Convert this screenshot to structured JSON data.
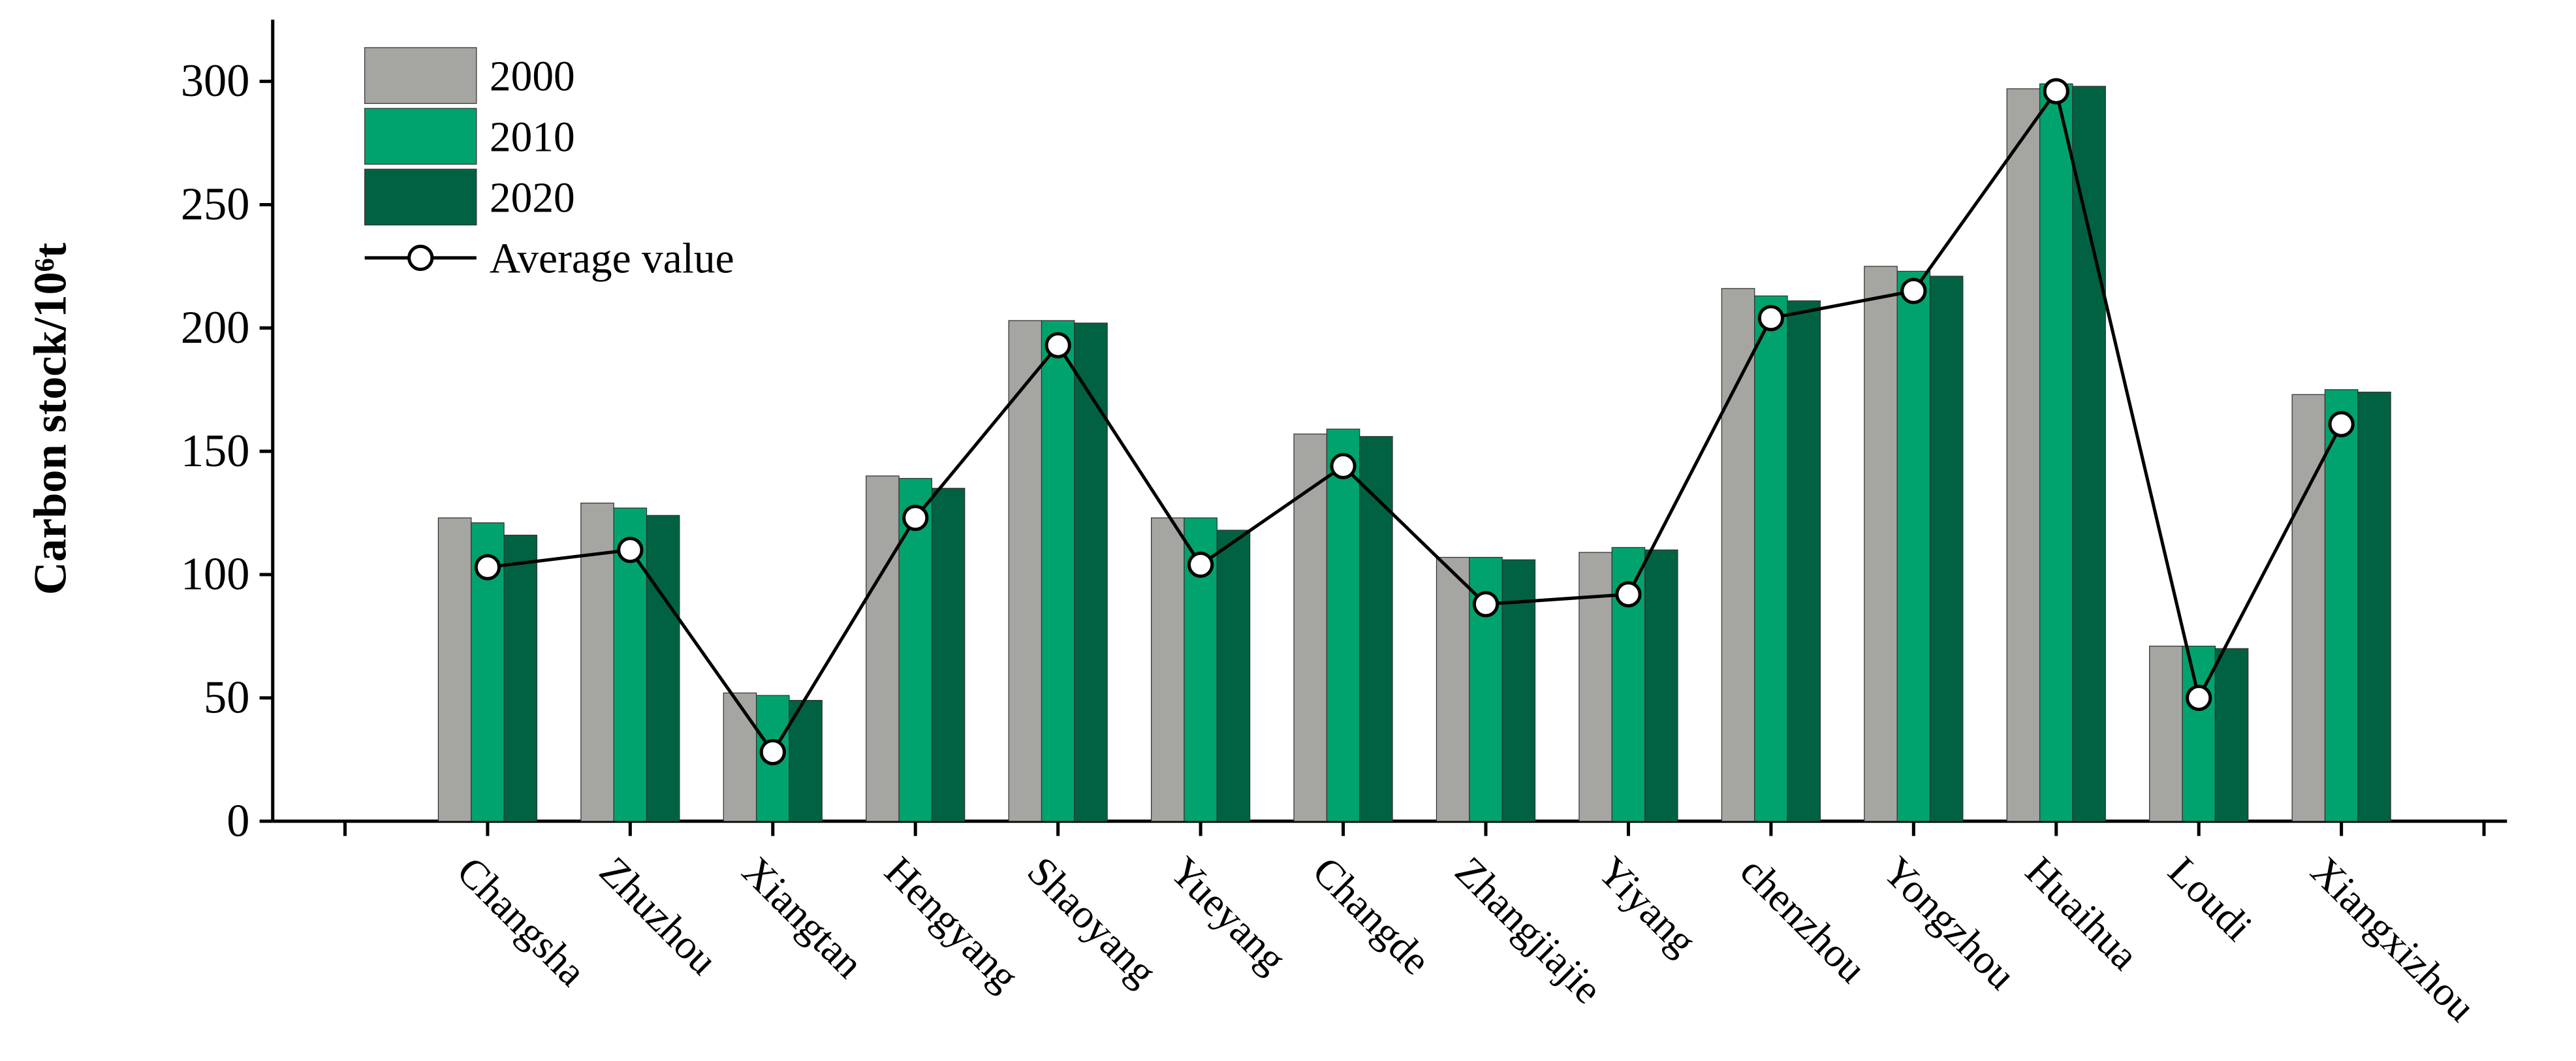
{
  "chart_data": {
    "type": "bar",
    "y_label": "Carbon stock/10⁶t",
    "categories": [
      "Changsha",
      "Zhuzhou",
      "Xiangtan",
      "Hengyang",
      "Shaoyang",
      "Yueyang",
      "Changde",
      "Zhangjiajie",
      "Yiyang",
      "chenzhou",
      "Yongzhou",
      "Huaihua",
      "Loudi",
      "Xiangxizhou"
    ],
    "series": [
      {
        "name": "2000",
        "color": "#a5a5a1",
        "values": [
          123,
          129,
          52,
          140,
          203,
          123,
          157,
          107,
          109,
          216,
          225,
          297,
          71,
          173
        ]
      },
      {
        "name": "2010",
        "color": "#00a36e",
        "values": [
          121,
          127,
          51,
          139,
          203,
          123,
          159,
          107,
          111,
          213,
          223,
          299,
          71,
          175
        ]
      },
      {
        "name": "2020",
        "color": "#006242",
        "values": [
          116,
          124,
          49,
          135,
          202,
          118,
          156,
          106,
          110,
          211,
          221,
          298,
          70,
          174
        ]
      },
      {
        "name": "Average value",
        "type": "line",
        "color": "#000000",
        "values": [
          103,
          110,
          28,
          123,
          193,
          104,
          144,
          88,
          92,
          204,
          215,
          296,
          50,
          161
        ]
      }
    ],
    "ylim": [
      0,
      325
    ],
    "yticks": [
      0,
      50,
      100,
      150,
      200,
      250,
      300
    ]
  }
}
